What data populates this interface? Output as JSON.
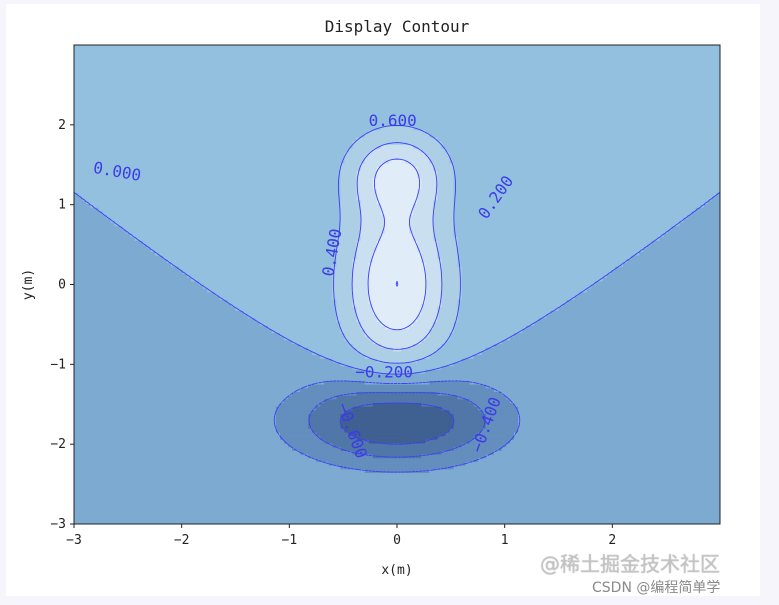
{
  "chart_data": {
    "type": "contour",
    "title": "Display Contour",
    "xlabel": "x(m)",
    "ylabel": "y(m)",
    "xlim": [
      -3,
      3
    ],
    "ylim": [
      -3,
      3
    ],
    "x_ticks": [
      -3,
      -2,
      -1,
      0,
      1,
      2
    ],
    "x_tick_labels": [
      "−3",
      "−2",
      "−1",
      "0",
      "1",
      "2"
    ],
    "y_ticks": [
      -3,
      -2,
      -1,
      0,
      1,
      2
    ],
    "y_tick_labels": [
      "−3",
      "−2",
      "−1",
      "0",
      "1",
      "2"
    ],
    "levels": [
      -0.8,
      -0.6,
      -0.4,
      -0.2,
      0.0,
      0.2,
      0.4,
      0.6,
      0.8
    ],
    "contour_labels": [
      {
        "text": "0.600",
        "x": -0.04,
        "y": 2.05,
        "angle": 0
      },
      {
        "text": "0.000",
        "x": -2.6,
        "y": 1.41,
        "angle": 10
      },
      {
        "text": "0.200",
        "x": 0.92,
        "y": 1.09,
        "angle": -55
      },
      {
        "text": "0.400",
        "x": -0.6,
        "y": 0.4,
        "angle": -80
      },
      {
        "text": "−0.200",
        "x": -0.12,
        "y": -1.1,
        "angle": 0
      },
      {
        "text": "−0.600",
        "x": -0.42,
        "y": -1.83,
        "angle": 70
      },
      {
        "text": "−0.400",
        "x": 0.83,
        "y": -1.76,
        "angle": -70
      }
    ],
    "grid": false,
    "colormap": "Blues",
    "line_color": "#3b3bff"
  },
  "watermarks": {
    "juejin": "@稀土掘金技术社区",
    "csdn": "CSDN @编程简单学"
  }
}
